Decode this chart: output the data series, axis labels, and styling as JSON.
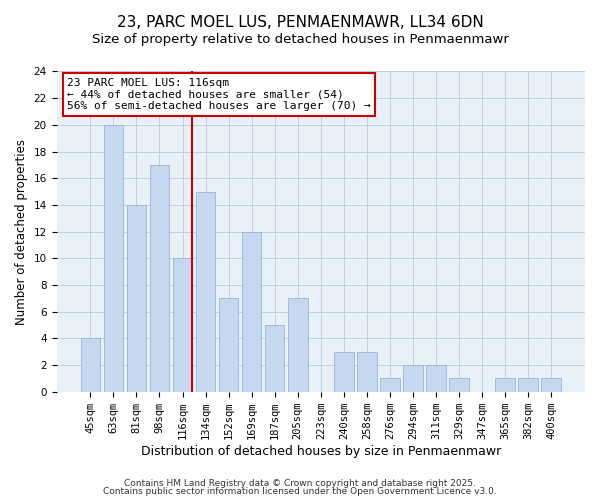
{
  "title": "23, PARC MOEL LUS, PENMAENMAWR, LL34 6DN",
  "subtitle": "Size of property relative to detached houses in Penmaenmawr",
  "xlabel": "Distribution of detached houses by size in Penmaenmawr",
  "ylabel": "Number of detached properties",
  "bar_labels": [
    "45sqm",
    "63sqm",
    "81sqm",
    "98sqm",
    "116sqm",
    "134sqm",
    "152sqm",
    "169sqm",
    "187sqm",
    "205sqm",
    "223sqm",
    "240sqm",
    "258sqm",
    "276sqm",
    "294sqm",
    "311sqm",
    "329sqm",
    "347sqm",
    "365sqm",
    "382sqm",
    "400sqm"
  ],
  "bar_values": [
    4,
    20,
    14,
    17,
    10,
    15,
    7,
    12,
    5,
    7,
    0,
    3,
    3,
    1,
    2,
    2,
    1,
    0,
    1,
    1,
    1
  ],
  "bar_color": "#c5d8ef",
  "bar_edge_color": "#9ab5d5",
  "vline_color": "#cc0000",
  "ylim": [
    0,
    24
  ],
  "yticks": [
    0,
    2,
    4,
    6,
    8,
    10,
    12,
    14,
    16,
    18,
    20,
    22,
    24
  ],
  "annotation_line1": "23 PARC MOEL LUS: 116sqm",
  "annotation_line2": "← 44% of detached houses are smaller (54)",
  "annotation_line3": "56% of semi-detached houses are larger (70) →",
  "annotation_box_edgecolor": "#cc0000",
  "footer1": "Contains HM Land Registry data © Crown copyright and database right 2025.",
  "footer2": "Contains public sector information licensed under the Open Government Licence v3.0.",
  "background_color": "#ffffff",
  "ax_background_color": "#e8f0f8",
  "grid_color": "#c0cfe0",
  "title_fontsize": 11,
  "subtitle_fontsize": 9.5,
  "xlabel_fontsize": 9,
  "ylabel_fontsize": 8.5,
  "tick_fontsize": 7.5,
  "annotation_fontsize": 8,
  "footer_fontsize": 6.5
}
